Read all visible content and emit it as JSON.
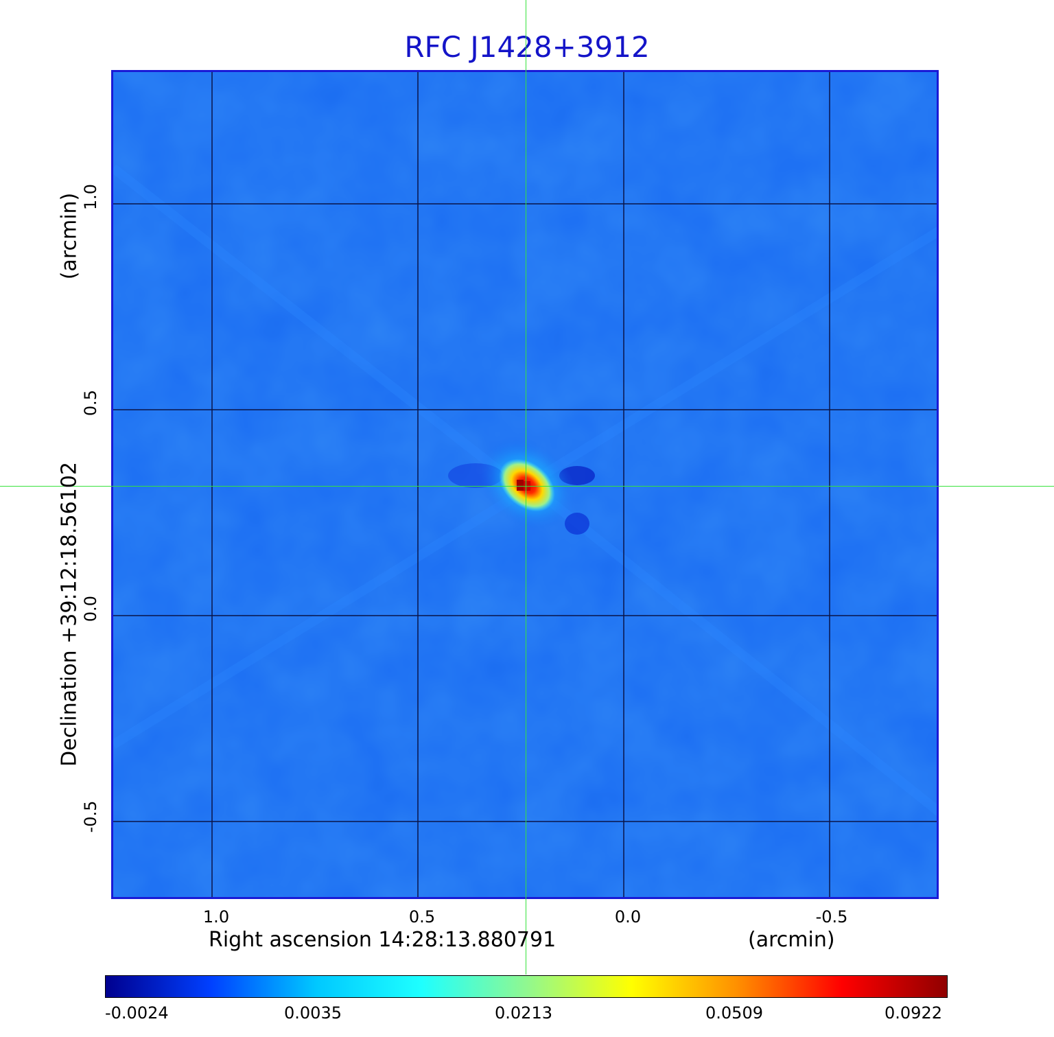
{
  "title": "RFC J1428+3912",
  "x_axis": {
    "label": "Right ascension  14:28:13.880791",
    "unit": "(arcmin)",
    "ticks": [
      "1.0",
      "0.5",
      "0.0",
      "-0.5"
    ]
  },
  "y_axis": {
    "label": "Declination  +39:12:18.56102",
    "unit": "(arcmin)",
    "ticks": [
      "1.0",
      "0.5",
      "0.0",
      "-0.5"
    ]
  },
  "colorbar": {
    "ticks": [
      "-0.0024",
      "0.0035",
      "0.0213",
      "0.0509",
      "0.0922"
    ],
    "colormap": [
      "#00008f",
      "#0040ff",
      "#00c8ff",
      "#1effff",
      "#90f890",
      "#ffff00",
      "#ff9000",
      "#ff0000",
      "#900000"
    ]
  },
  "colors": {
    "title": "#1414c8",
    "frame": "#1a1ad6",
    "background_map": "#1a6cf2",
    "crosshair": "#36e23c",
    "grid": "#0a1448"
  }
}
